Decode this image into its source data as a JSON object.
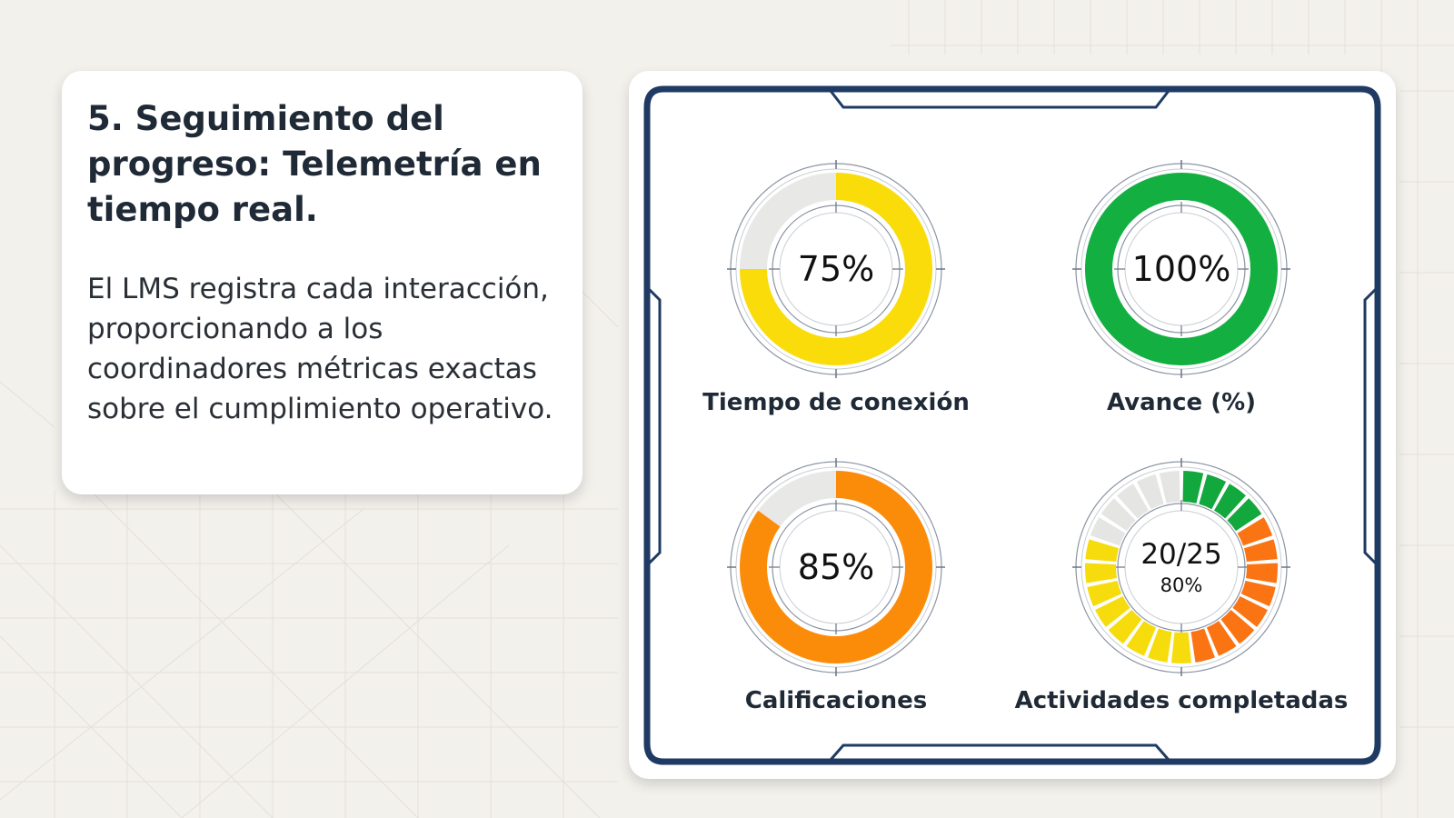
{
  "text_card": {
    "title": "5. Seguimiento del progreso: Telemetría en tiempo real.",
    "body": "El LMS registra cada interacción, proporcionando a los coordinadores métricas exactas sobre el cumplimiento operativo."
  },
  "gauges": [
    {
      "label": "Tiempo de conexión",
      "value_text": "75%",
      "value": 75,
      "color": "#f9dc0a"
    },
    {
      "label": "Avance (%)",
      "value_text": "100%",
      "value": 100,
      "color": "#13b041"
    },
    {
      "label": "Calificaciones",
      "value_text": "85%",
      "value": 85,
      "color": "#fb8c0a"
    },
    {
      "label": "Actividades completadas",
      "value_text": "20/25",
      "sub_text": "80%",
      "completed": 20,
      "total": 25,
      "segment_colors": {
        "green": "#13a83d",
        "orange": "#fb7414",
        "yellow": "#f6dc0c",
        "empty": "#e5e5e3"
      }
    }
  ],
  "colors": {
    "frame": "#1f3a63",
    "track": "#e8e8e6"
  }
}
